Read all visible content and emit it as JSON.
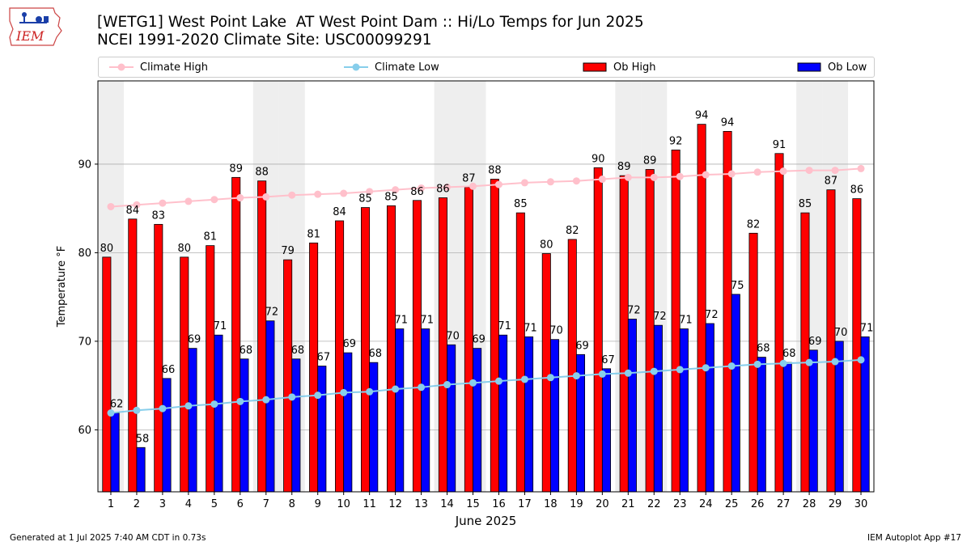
{
  "header": {
    "title": "[WETG1] West Point Lake  AT West Point Dam :: Hi/Lo Temps for Jun 2025",
    "subtitle": "NCEI 1991-2020 Climate Site: USC00099291"
  },
  "logo": {
    "text": "IEM"
  },
  "footer": {
    "generated": "Generated at 1 Jul 2025 7:40 AM CDT in 0.73s",
    "app": "IEM Autoplot App #17"
  },
  "colors": {
    "ob_high": "#ff0000",
    "ob_low": "#0000ff",
    "climate_high": "#ffc0cb",
    "climate_low": "#87ceeb",
    "weekend_band": "#eeeeee",
    "grid": "#b0b0b0"
  },
  "chart_data": {
    "type": "bar",
    "xlabel": "June 2025",
    "ylabel": "Temperature °F",
    "ylim": [
      53,
      99.4
    ],
    "yticks": [
      60,
      70,
      80,
      90
    ],
    "grid": true,
    "legend_placement": "top",
    "categories": [
      "1",
      "2",
      "3",
      "4",
      "5",
      "6",
      "7",
      "8",
      "9",
      "10",
      "11",
      "12",
      "13",
      "14",
      "15",
      "16",
      "17",
      "18",
      "19",
      "20",
      "21",
      "22",
      "23",
      "24",
      "25",
      "26",
      "27",
      "28",
      "29",
      "30"
    ],
    "weekend_days": [
      1,
      7,
      8,
      14,
      15,
      21,
      22,
      28,
      29
    ],
    "series": [
      {
        "name": "Ob High",
        "kind": "bar",
        "values": [
          79.5,
          83.8,
          83.2,
          79.5,
          80.8,
          88.5,
          88.1,
          79.2,
          81.1,
          83.6,
          85.1,
          85.3,
          85.9,
          86.2,
          87.4,
          88.3,
          84.5,
          79.9,
          81.5,
          89.6,
          88.7,
          89.4,
          91.6,
          94.5,
          93.7,
          82.2,
          91.2,
          84.5,
          87.1,
          86.1
        ],
        "labels": [
          "80",
          "84",
          "83",
          "80",
          "81",
          "89",
          "88",
          "79",
          "81",
          "84",
          "85",
          "85",
          "86",
          "86",
          "87",
          "88",
          "85",
          "80",
          "82",
          "90",
          "89",
          "89",
          "92",
          "94",
          "94",
          "82",
          "91",
          "85",
          "87",
          "86"
        ]
      },
      {
        "name": "Ob Low",
        "kind": "bar",
        "values": [
          61.9,
          58.0,
          65.8,
          69.2,
          70.7,
          68.0,
          72.3,
          68.0,
          67.2,
          68.7,
          67.6,
          71.4,
          71.4,
          69.6,
          69.2,
          70.7,
          70.5,
          70.2,
          68.5,
          66.9,
          72.5,
          71.8,
          71.4,
          72.0,
          75.3,
          68.2,
          67.6,
          69.0,
          70.0,
          70.5
        ],
        "labels": [
          "62",
          "58",
          "66",
          "69",
          "71",
          "68",
          "72",
          "68",
          "67",
          "69",
          "68",
          "71",
          "71",
          "70",
          "69",
          "71",
          "71",
          "70",
          "69",
          "67",
          "72",
          "72",
          "71",
          "72",
          "75",
          "68",
          "68",
          "69",
          "70",
          "71"
        ]
      },
      {
        "name": "Climate High",
        "kind": "line",
        "values": [
          85.2,
          85.4,
          85.6,
          85.8,
          86.0,
          86.2,
          86.3,
          86.5,
          86.6,
          86.7,
          86.9,
          87.1,
          87.3,
          87.4,
          87.5,
          87.7,
          87.9,
          88.0,
          88.1,
          88.3,
          88.5,
          88.5,
          88.6,
          88.8,
          88.9,
          89.1,
          89.2,
          89.3,
          89.3,
          89.5
        ]
      },
      {
        "name": "Climate Low",
        "kind": "line",
        "values": [
          61.9,
          62.2,
          62.4,
          62.7,
          62.9,
          63.2,
          63.4,
          63.7,
          63.9,
          64.2,
          64.3,
          64.6,
          64.8,
          65.1,
          65.3,
          65.5,
          65.7,
          65.9,
          66.1,
          66.3,
          66.4,
          66.6,
          66.8,
          67.0,
          67.2,
          67.4,
          67.5,
          67.6,
          67.7,
          67.9
        ]
      }
    ]
  }
}
